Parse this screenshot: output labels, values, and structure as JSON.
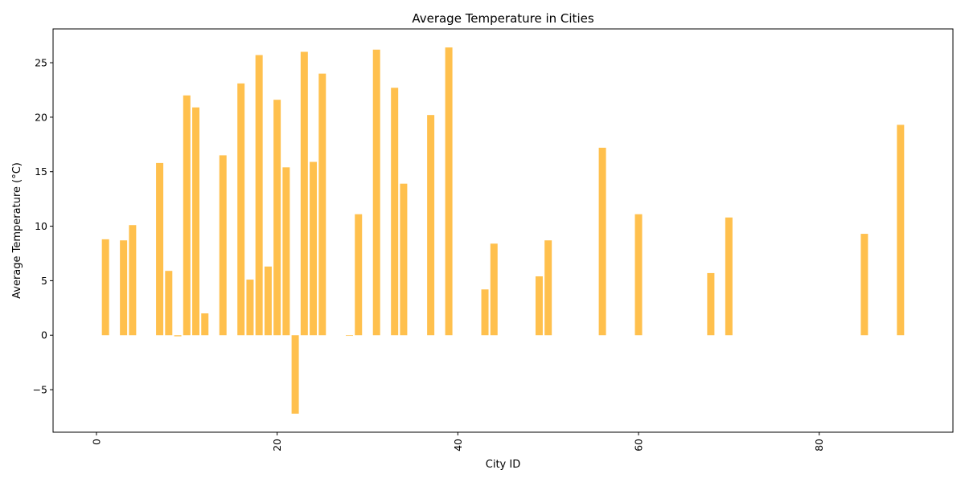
{
  "chart_data": {
    "type": "bar",
    "title": "Average Temperature in Cities",
    "xlabel": "City ID",
    "ylabel": "Average Temperature (°C)",
    "xlim": [
      -4.8,
      94.8
    ],
    "ylim": [
      -8.9,
      28.1
    ],
    "xticks": [
      0,
      20,
      40,
      60,
      80
    ],
    "yticks": [
      -5,
      0,
      5,
      10,
      15,
      20,
      25
    ],
    "ytick_labels": [
      "−5",
      "0",
      "5",
      "10",
      "15",
      "20",
      "25"
    ],
    "grid": false,
    "legend": "none",
    "bar_color": "#FFC04D",
    "x": [
      1,
      3,
      4,
      7,
      8,
      9,
      10,
      11,
      12,
      14,
      16,
      17,
      18,
      19,
      20,
      21,
      22,
      23,
      24,
      25,
      28,
      29,
      31,
      33,
      34,
      37,
      39,
      43,
      44,
      49,
      50,
      56,
      60,
      68,
      70,
      85,
      89
    ],
    "values": [
      8.8,
      8.7,
      10.1,
      15.8,
      5.9,
      -0.1,
      22.0,
      20.9,
      2.0,
      16.5,
      23.1,
      5.1,
      25.7,
      6.3,
      21.6,
      15.4,
      -7.2,
      26.0,
      15.9,
      24.0,
      -0.05,
      11.1,
      26.2,
      22.7,
      13.9,
      20.2,
      26.4,
      4.2,
      8.4,
      5.4,
      8.7,
      17.2,
      11.1,
      5.7,
      10.8,
      9.3,
      19.3
    ]
  }
}
